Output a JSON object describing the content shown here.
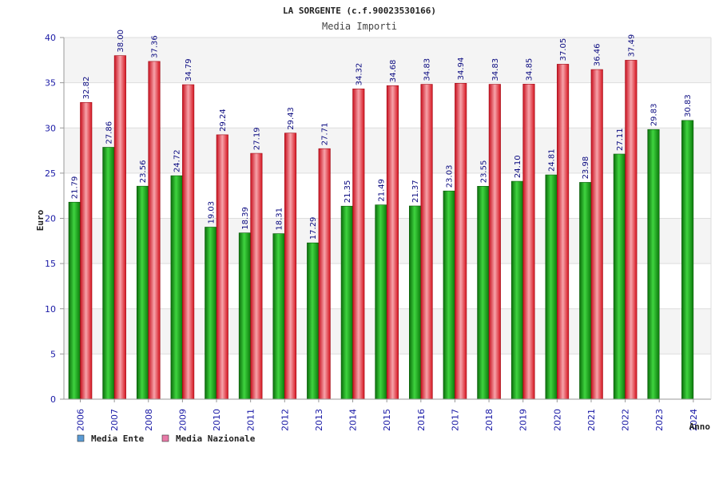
{
  "chart_data": {
    "type": "bar",
    "title": "LA SORGENTE (c.f.90023530166)",
    "subtitle": "Media Importi",
    "ylabel": "Euro",
    "xlabel": "Anno",
    "ylim": [
      0,
      40
    ],
    "yticks": [
      0,
      5,
      10,
      15,
      20,
      25,
      30,
      35,
      40
    ],
    "categories": [
      "2006",
      "2007",
      "2008",
      "2009",
      "2010",
      "2011",
      "2012",
      "2013",
      "2014",
      "2015",
      "2016",
      "2017",
      "2018",
      "2019",
      "2020",
      "2021",
      "2022",
      "2023",
      "2024"
    ],
    "series": [
      {
        "name": "Media Ente",
        "color": "#1fa81f",
        "legend_color": "#5b9bd5",
        "values": [
          21.79,
          27.86,
          23.56,
          24.72,
          19.03,
          18.39,
          18.31,
          17.29,
          21.35,
          21.49,
          21.37,
          23.03,
          23.55,
          24.1,
          24.81,
          23.98,
          27.11,
          29.83,
          30.83
        ],
        "labels": [
          "21.79",
          "27.86",
          "23.56",
          "24.72",
          "19.03",
          "18.39",
          "18.31",
          "17.29",
          "21.35",
          "21.49",
          "21.37",
          "23.03",
          "23.55",
          "24.10",
          "24.81",
          "23.98",
          "27.11",
          "29.83",
          "30.83"
        ]
      },
      {
        "name": "Media Nazionale",
        "color": "#e8283a",
        "legend_color": "#e87aa8",
        "values": [
          32.82,
          38.0,
          37.36,
          34.79,
          29.24,
          27.19,
          29.43,
          27.71,
          34.32,
          34.68,
          34.83,
          34.94,
          34.83,
          34.85,
          37.05,
          36.46,
          37.49,
          null,
          null
        ],
        "labels": [
          "32.82",
          "38.00",
          "37.36",
          "34.79",
          "29.24",
          "27.19",
          "29.43",
          "27.71",
          "34.32",
          "34.68",
          "34.83",
          "34.94",
          "34.83",
          "34.85",
          "37.05",
          "36.46",
          "37.49",
          "",
          ""
        ]
      }
    ],
    "grid": true,
    "legend_position": "bottom-left"
  }
}
